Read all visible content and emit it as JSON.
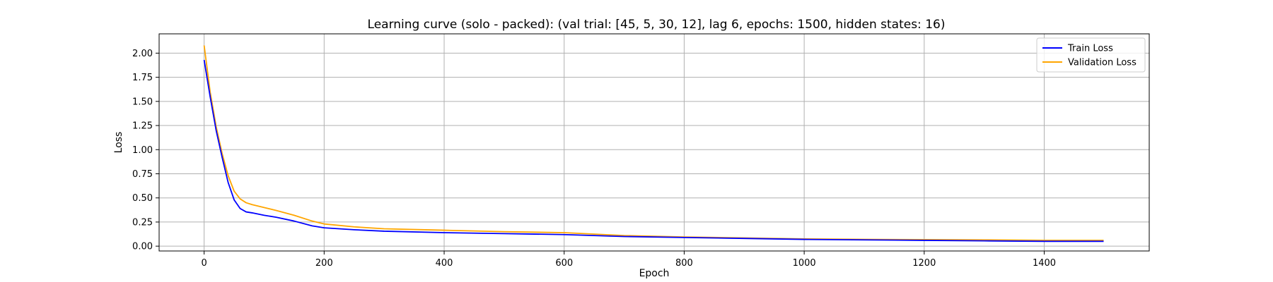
{
  "chart_data": {
    "type": "line",
    "title": "Learning curve (solo - packed): (val trial: [45, 5, 30, 12], lag 6, epochs: 1500, hidden states: 16)",
    "xlabel": "Epoch",
    "ylabel": "Loss",
    "xlim": [
      -75,
      1575
    ],
    "ylim": [
      -0.05,
      2.2
    ],
    "x_ticks": [
      0,
      200,
      400,
      600,
      800,
      1000,
      1200,
      1400
    ],
    "y_ticks": [
      0.0,
      0.25,
      0.5,
      0.75,
      1.0,
      1.25,
      1.5,
      1.75,
      2.0
    ],
    "x_tick_labels": [
      "0",
      "200",
      "400",
      "600",
      "800",
      "1000",
      "1200",
      "1400"
    ],
    "y_tick_labels": [
      "0.00",
      "0.25",
      "0.50",
      "0.75",
      "1.00",
      "1.25",
      "1.50",
      "1.75",
      "2.00"
    ],
    "grid": true,
    "legend_position": "top-right",
    "series": [
      {
        "name": "Train Loss",
        "color": "#0000ff",
        "x": [
          0,
          10,
          20,
          30,
          40,
          50,
          60,
          70,
          80,
          100,
          120,
          150,
          180,
          200,
          250,
          300,
          400,
          500,
          600,
          700,
          800,
          900,
          1000,
          1100,
          1200,
          1300,
          1400,
          1499
        ],
        "y": [
          1.93,
          1.55,
          1.2,
          0.92,
          0.66,
          0.48,
          0.39,
          0.355,
          0.345,
          0.32,
          0.3,
          0.26,
          0.21,
          0.19,
          0.17,
          0.155,
          0.14,
          0.13,
          0.12,
          0.1,
          0.09,
          0.08,
          0.07,
          0.065,
          0.06,
          0.055,
          0.05,
          0.05
        ]
      },
      {
        "name": "Validation Loss",
        "color": "#ffa500",
        "x": [
          0,
          10,
          20,
          30,
          40,
          50,
          60,
          70,
          80,
          100,
          120,
          150,
          180,
          200,
          250,
          300,
          400,
          500,
          600,
          700,
          800,
          900,
          1000,
          1100,
          1200,
          1300,
          1400,
          1499
        ],
        "y": [
          2.08,
          1.6,
          1.24,
          0.96,
          0.73,
          0.57,
          0.49,
          0.45,
          0.43,
          0.4,
          0.37,
          0.32,
          0.26,
          0.23,
          0.2,
          0.18,
          0.165,
          0.15,
          0.14,
          0.11,
          0.095,
          0.085,
          0.075,
          0.07,
          0.068,
          0.065,
          0.06,
          0.06
        ]
      }
    ]
  }
}
